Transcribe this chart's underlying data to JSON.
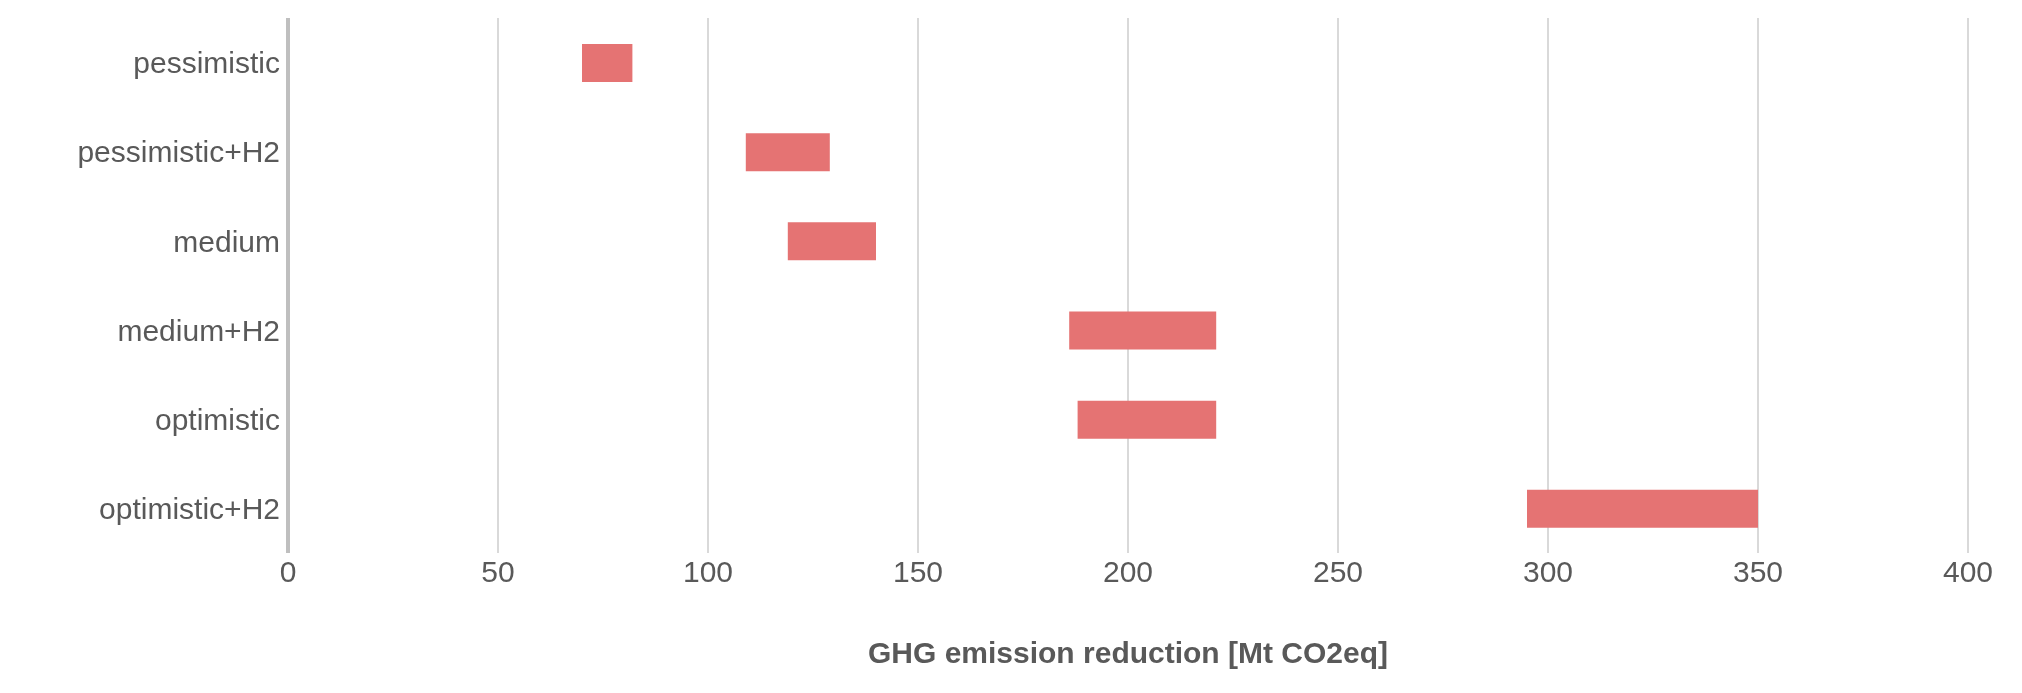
{
  "chart_data": {
    "type": "bar",
    "orientation": "horizontal",
    "xlabel": "GHG emission reduction [Mt CO2eq]",
    "categories": [
      "pessimistic",
      "pessimistic+H2",
      "medium",
      "medium+H2",
      "optimistic",
      "optimistic+H2"
    ],
    "base": [
      70,
      109,
      119,
      186,
      188,
      295
    ],
    "values": [
      12,
      20,
      21,
      35,
      33,
      55
    ],
    "color": "#e57373",
    "xlim": [
      0,
      400
    ],
    "xticks": [
      0,
      50,
      100,
      150,
      200,
      250,
      300,
      350,
      400
    ],
    "grid": "x"
  }
}
